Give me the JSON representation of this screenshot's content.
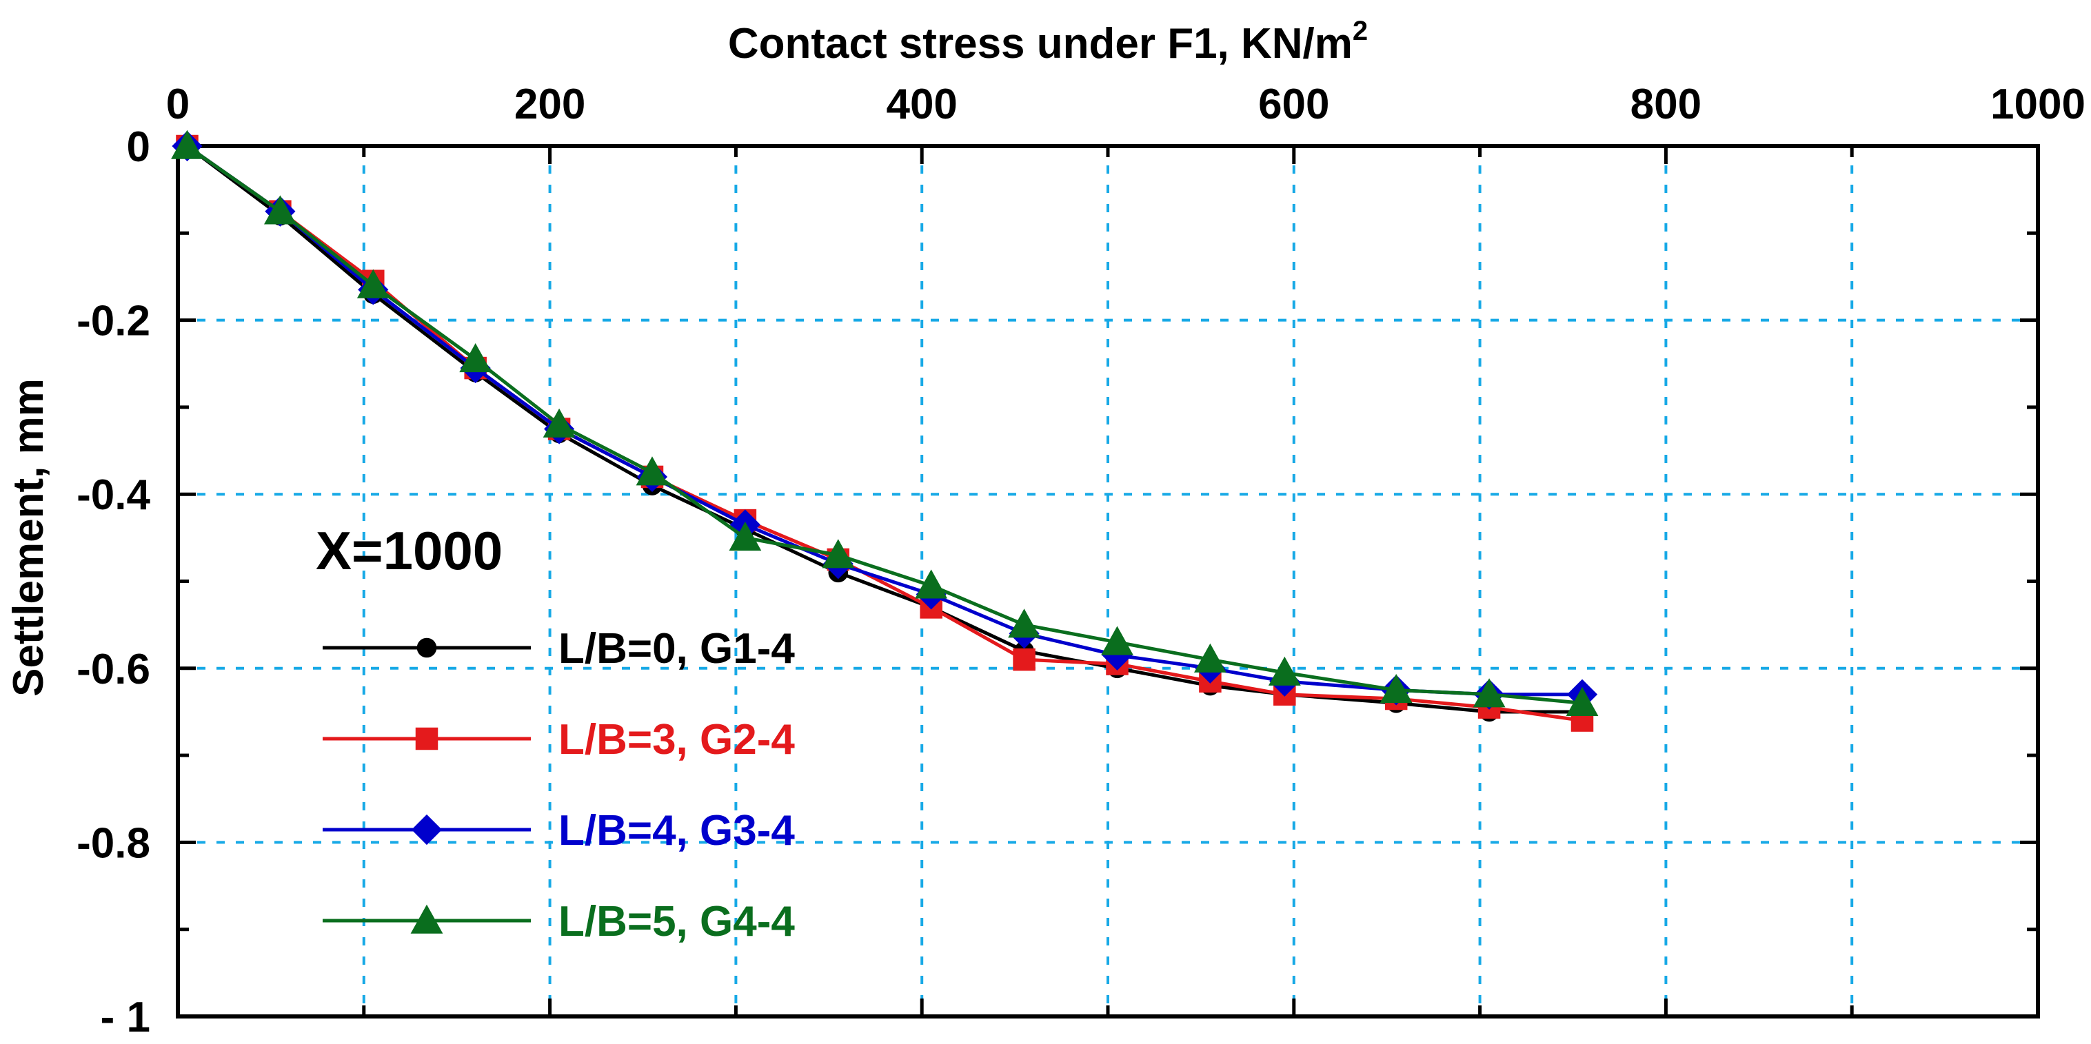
{
  "chart_data": {
    "type": "line",
    "title": "",
    "xlabel": "Contact  stress under F1, KN/m",
    "xlabel_superscript": "2",
    "ylabel": "Settlement, mm",
    "xlim": [
      0,
      1000
    ],
    "ylim": [
      -1,
      0
    ],
    "x_axis_position": "top",
    "x_ticks": [
      0,
      200,
      400,
      600,
      800,
      1000
    ],
    "x_tick_labels": [
      "0",
      "200",
      "400",
      "600",
      "800",
      "1000"
    ],
    "y_ticks": [
      0,
      -0.2,
      -0.4,
      -0.6,
      -0.8,
      -1
    ],
    "y_tick_labels": [
      "0",
      "-0.2",
      "-0.4",
      "-0.6",
      "-0.8",
      "- 1"
    ],
    "x_grid": [
      100,
      200,
      300,
      400,
      500,
      600,
      700,
      800,
      900
    ],
    "y_grid": [
      -0.2,
      -0.4,
      -0.6,
      -0.8
    ],
    "grid": true,
    "grid_color": "#17a9e6",
    "annotation": "X=1000",
    "legend_position": "lower-left",
    "x": [
      5,
      55,
      105,
      160,
      205,
      255,
      305,
      355,
      405,
      455,
      505,
      555,
      595,
      655,
      705,
      755
    ],
    "series": [
      {
        "name": "L/B=0, G1-4",
        "color": "#000000",
        "marker": "circle",
        "values": [
          0,
          -0.08,
          -0.17,
          -0.26,
          -0.33,
          -0.39,
          -0.44,
          -0.49,
          -0.53,
          -0.58,
          -0.6,
          -0.62,
          -0.63,
          -0.64,
          -0.65,
          -0.65
        ]
      },
      {
        "name": "L/B=3, G2-4",
        "color": "#e41a1c",
        "marker": "square",
        "values": [
          0,
          -0.075,
          -0.155,
          -0.255,
          -0.325,
          -0.38,
          -0.43,
          -0.475,
          -0.53,
          -0.59,
          -0.595,
          -0.615,
          -0.63,
          -0.635,
          -0.645,
          -0.66
        ]
      },
      {
        "name": "L/B=4, G3-4",
        "color": "#0000cc",
        "marker": "diamond",
        "values": [
          0,
          -0.075,
          -0.165,
          -0.255,
          -0.325,
          -0.38,
          -0.435,
          -0.48,
          -0.515,
          -0.56,
          -0.585,
          -0.6,
          -0.615,
          -0.625,
          -0.63,
          -0.63
        ]
      },
      {
        "name": "L/B=5, G4-4",
        "color": "#0a6e1e",
        "marker": "triangle",
        "values": [
          0,
          -0.075,
          -0.16,
          -0.245,
          -0.32,
          -0.375,
          -0.45,
          -0.47,
          -0.505,
          -0.55,
          -0.57,
          -0.59,
          -0.605,
          -0.625,
          -0.63,
          -0.64
        ]
      }
    ]
  }
}
